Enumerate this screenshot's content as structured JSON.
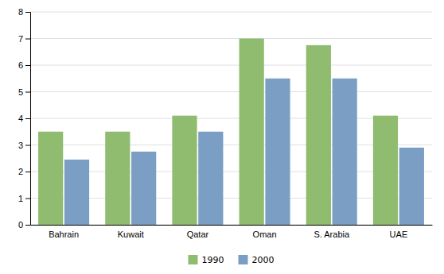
{
  "chart_data": {
    "type": "bar",
    "categories": [
      "Bahrain",
      "Kuwait",
      "Qatar",
      "Oman",
      "S. Arabia",
      "UAE"
    ],
    "series": [
      {
        "name": "1990",
        "color": "#8FBC6E",
        "values": [
          3.5,
          3.5,
          4.1,
          7.0,
          6.75,
          4.1
        ]
      },
      {
        "name": "2000",
        "color": "#7B9EC4",
        "values": [
          2.45,
          2.75,
          3.5,
          5.5,
          5.5,
          2.9
        ]
      }
    ],
    "ylim": [
      0,
      8
    ],
    "yticks": [
      0,
      1,
      2,
      3,
      4,
      5,
      6,
      7,
      8
    ],
    "grid": true,
    "legend": "bottom"
  }
}
